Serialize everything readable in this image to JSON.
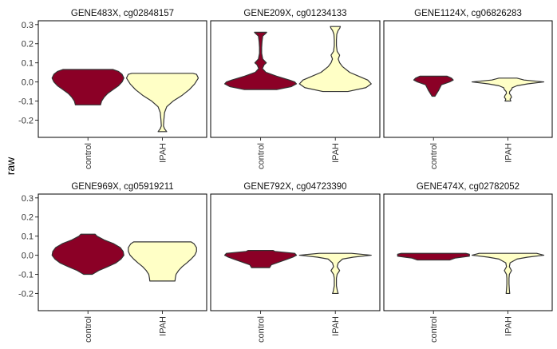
{
  "chart_data": {
    "type": "violin",
    "ylabel": "raw",
    "ylim": [
      -0.29,
      0.32
    ],
    "y_ticks": [
      -0.2,
      -0.1,
      0.0,
      0.1,
      0.2,
      0.3
    ],
    "y_tick_labels": [
      "-0.2",
      "-0.1",
      "0.0",
      "0.1",
      "0.2",
      "0.3"
    ],
    "categories": [
      "control",
      "IPAH"
    ],
    "colors": {
      "control": "#8b0026",
      "IPAH": "#ffffc6"
    },
    "panels": [
      {
        "title": "GENE483X, cg02848157",
        "violins": [
          {
            "group": "control",
            "min": -0.12,
            "max": 0.065,
            "profile": [
              [
                -0.12,
                0.35
              ],
              [
                -0.1,
                0.38
              ],
              [
                -0.08,
                0.45
              ],
              [
                -0.06,
                0.55
              ],
              [
                -0.04,
                0.7
              ],
              [
                -0.02,
                0.85
              ],
              [
                0.0,
                0.95
              ],
              [
                0.02,
                1.0
              ],
              [
                0.04,
                0.95
              ],
              [
                0.055,
                0.85
              ],
              [
                0.065,
                0.7
              ]
            ]
          },
          {
            "group": "IPAH",
            "min": -0.26,
            "max": 0.045,
            "profile": [
              [
                -0.26,
                0.12
              ],
              [
                -0.245,
                0.06
              ],
              [
                -0.23,
                0.03
              ],
              [
                -0.2,
                0.04
              ],
              [
                -0.16,
                0.06
              ],
              [
                -0.13,
                0.12
              ],
              [
                -0.1,
                0.3
              ],
              [
                -0.07,
                0.55
              ],
              [
                -0.04,
                0.75
              ],
              [
                -0.01,
                0.9
              ],
              [
                0.02,
                1.0
              ],
              [
                0.04,
                0.95
              ],
              [
                0.045,
                0.85
              ]
            ]
          }
        ]
      },
      {
        "title": "GENE209X, cg01234133",
        "violins": [
          {
            "group": "control",
            "min": -0.04,
            "max": 0.26,
            "profile": [
              [
                -0.04,
                0.45
              ],
              [
                -0.025,
                0.85
              ],
              [
                -0.01,
                1.0
              ],
              [
                0.0,
                0.95
              ],
              [
                0.01,
                0.8
              ],
              [
                0.03,
                0.45
              ],
              [
                0.05,
                0.15
              ],
              [
                0.07,
                0.05
              ],
              [
                0.09,
                0.1
              ],
              [
                0.1,
                0.16
              ],
              [
                0.12,
                0.06
              ],
              [
                0.15,
                0.03
              ],
              [
                0.18,
                0.03
              ],
              [
                0.21,
                0.04
              ],
              [
                0.24,
                0.06
              ],
              [
                0.255,
                0.15
              ],
              [
                0.26,
                0.17
              ]
            ]
          },
          {
            "group": "IPAH",
            "min": -0.05,
            "max": 0.29,
            "profile": [
              [
                -0.05,
                0.35
              ],
              [
                -0.03,
                0.85
              ],
              [
                -0.01,
                1.0
              ],
              [
                0.01,
                0.9
              ],
              [
                0.03,
                0.65
              ],
              [
                0.05,
                0.4
              ],
              [
                0.08,
                0.2
              ],
              [
                0.1,
                0.12
              ],
              [
                0.12,
                0.08
              ],
              [
                0.14,
                0.12
              ],
              [
                0.16,
                0.05
              ],
              [
                0.19,
                0.03
              ],
              [
                0.22,
                0.03
              ],
              [
                0.25,
                0.04
              ],
              [
                0.27,
                0.08
              ],
              [
                0.28,
                0.12
              ],
              [
                0.29,
                0.14
              ]
            ]
          }
        ]
      },
      {
        "title": "GENE1124X, cg06826283",
        "violins": [
          {
            "group": "control",
            "min": -0.075,
            "max": 0.03,
            "profile": [
              [
                -0.075,
                0.04
              ],
              [
                -0.06,
                0.09
              ],
              [
                -0.045,
                0.14
              ],
              [
                -0.03,
                0.18
              ],
              [
                -0.015,
                0.22
              ],
              [
                0.0,
                0.45
              ],
              [
                0.01,
                0.55
              ],
              [
                0.02,
                0.5
              ],
              [
                0.03,
                0.38
              ]
            ]
          },
          {
            "group": "IPAH",
            "min": -0.1,
            "max": 0.02,
            "profile": [
              [
                -0.1,
                0.08
              ],
              [
                -0.09,
                0.06
              ],
              [
                -0.08,
                0.1
              ],
              [
                -0.07,
                0.08
              ],
              [
                -0.06,
                0.04
              ],
              [
                -0.05,
                0.05
              ],
              [
                -0.04,
                0.1
              ],
              [
                -0.03,
                0.12
              ],
              [
                -0.02,
                0.25
              ],
              [
                -0.01,
                0.55
              ],
              [
                0.0,
                1.0
              ],
              [
                0.01,
                0.45
              ],
              [
                0.02,
                0.25
              ]
            ]
          }
        ]
      },
      {
        "title": "GENE969X, cg05919211",
        "violins": [
          {
            "group": "control",
            "min": -0.1,
            "max": 0.11,
            "profile": [
              [
                -0.1,
                0.12
              ],
              [
                -0.08,
                0.3
              ],
              [
                -0.06,
                0.55
              ],
              [
                -0.04,
                0.78
              ],
              [
                -0.02,
                0.92
              ],
              [
                0.0,
                1.0
              ],
              [
                0.02,
                0.98
              ],
              [
                0.04,
                0.9
              ],
              [
                0.06,
                0.72
              ],
              [
                0.08,
                0.45
              ],
              [
                0.1,
                0.25
              ],
              [
                0.11,
                0.2
              ]
            ]
          },
          {
            "group": "IPAH",
            "min": -0.135,
            "max": 0.07,
            "profile": [
              [
                -0.135,
                0.35
              ],
              [
                -0.12,
                0.36
              ],
              [
                -0.1,
                0.38
              ],
              [
                -0.08,
                0.45
              ],
              [
                -0.06,
                0.55
              ],
              [
                -0.04,
                0.68
              ],
              [
                -0.02,
                0.8
              ],
              [
                0.0,
                0.9
              ],
              [
                0.02,
                0.95
              ],
              [
                0.04,
                0.95
              ],
              [
                0.06,
                0.88
              ],
              [
                0.07,
                0.8
              ]
            ]
          }
        ]
      },
      {
        "title": "GENE792X, cg04723390",
        "violins": [
          {
            "group": "control",
            "min": -0.065,
            "max": 0.025,
            "profile": [
              [
                -0.065,
                0.25
              ],
              [
                -0.05,
                0.3
              ],
              [
                -0.04,
                0.45
              ],
              [
                -0.02,
                0.75
              ],
              [
                -0.01,
                0.9
              ],
              [
                0.0,
                1.0
              ],
              [
                0.01,
                0.95
              ],
              [
                0.02,
                0.4
              ],
              [
                0.025,
                0.35
              ]
            ]
          },
          {
            "group": "IPAH",
            "min": -0.2,
            "max": 0.01,
            "profile": [
              [
                -0.2,
                0.08
              ],
              [
                -0.19,
                0.06
              ],
              [
                -0.16,
                0.03
              ],
              [
                -0.12,
                0.03
              ],
              [
                -0.1,
                0.05
              ],
              [
                -0.08,
                0.12
              ],
              [
                -0.06,
                0.05
              ],
              [
                -0.04,
                0.08
              ],
              [
                -0.02,
                0.2
              ],
              [
                -0.01,
                0.5
              ],
              [
                0.0,
                1.0
              ],
              [
                0.01,
                0.45
              ]
            ]
          }
        ]
      },
      {
        "title": "GENE474X, cg02782052",
        "violins": [
          {
            "group": "control",
            "min": -0.025,
            "max": 0.01,
            "profile": [
              [
                -0.025,
                0.45
              ],
              [
                -0.015,
                0.6
              ],
              [
                -0.005,
                1.0
              ],
              [
                0.005,
                1.0
              ],
              [
                0.01,
                0.9
              ]
            ]
          },
          {
            "group": "IPAH",
            "min": -0.2,
            "max": 0.01,
            "profile": [
              [
                -0.2,
                0.05
              ],
              [
                -0.18,
                0.04
              ],
              [
                -0.15,
                0.03
              ],
              [
                -0.12,
                0.03
              ],
              [
                -0.1,
                0.04
              ],
              [
                -0.08,
                0.1
              ],
              [
                -0.06,
                0.04
              ],
              [
                -0.04,
                0.06
              ],
              [
                -0.02,
                0.25
              ],
              [
                -0.01,
                0.55
              ],
              [
                0.0,
                1.0
              ],
              [
                0.01,
                0.8
              ]
            ]
          }
        ]
      }
    ]
  }
}
